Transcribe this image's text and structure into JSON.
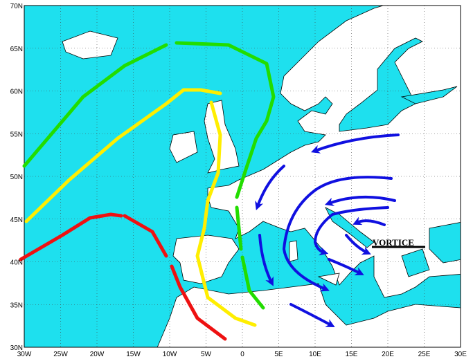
{
  "map": {
    "lat_labels": [
      "70N",
      "65N",
      "60N",
      "55N",
      "50N",
      "45N",
      "40N",
      "35N",
      "30N"
    ],
    "lon_labels": [
      "30W",
      "25W",
      "20W",
      "15W",
      "10W",
      "5W",
      "0",
      "5E",
      "10E",
      "15E",
      "20E",
      "25E",
      "30E"
    ],
    "annotation": "VORTICE"
  }
}
